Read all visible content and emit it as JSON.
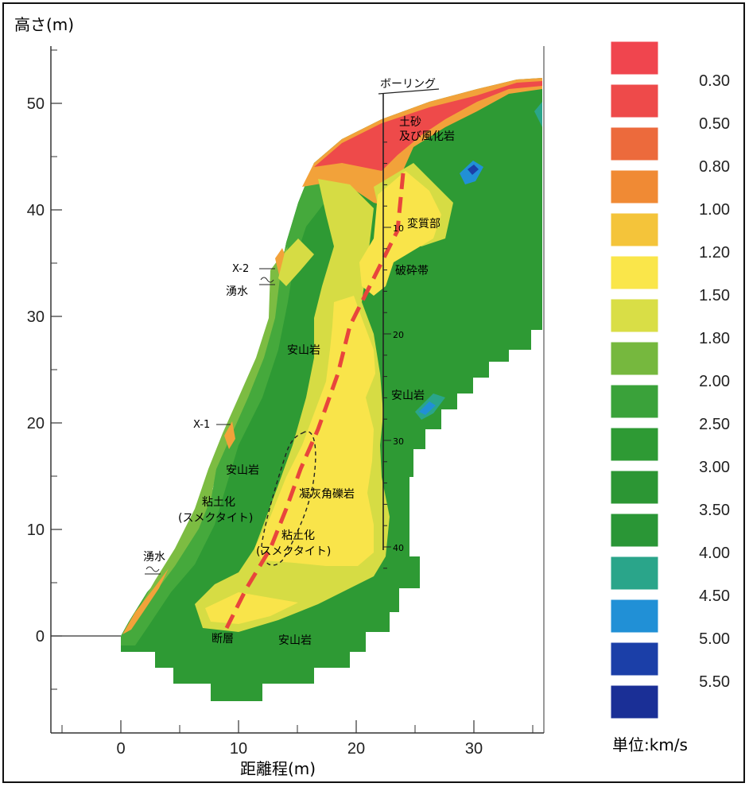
{
  "axes": {
    "y_title": "高さ(m)",
    "x_title": "距離程(m)",
    "x_ticks": [
      "0",
      "10",
      "20",
      "30"
    ],
    "y_ticks": [
      "0",
      "10",
      "20",
      "30",
      "40",
      "50"
    ]
  },
  "annotations": {
    "boring": "ボーリング",
    "soil": "土砂",
    "weathered": "及び風化岩",
    "altered": "変質部",
    "fractured": "破砕帯",
    "andesite_1": "安山岩",
    "andesite_2": "安山岩",
    "andesite_3": "安山岩",
    "andesite_4": "安山岩",
    "tuff_breccia": "凝灰角礫岩",
    "clay_1": "粘土化",
    "smectite_1": "(スメクタイト)",
    "clay_2": "粘土化",
    "smectite_2": "(スメクタイト)",
    "fault": "断層",
    "spring_1": "湧水",
    "spring_2": "湧水",
    "x2": "X-2",
    "x1": "X-1"
  },
  "boring_depth_ticks": [
    "10",
    "20",
    "30",
    "40"
  ],
  "legend": {
    "items": [
      {
        "label": "0.30",
        "color": "#f0454e"
      },
      {
        "label": "0.50",
        "color": "#ee4a4a"
      },
      {
        "label": "0.80",
        "color": "#ec6a3c"
      },
      {
        "label": "1.00",
        "color": "#f08a34"
      },
      {
        "label": "1.20",
        "color": "#f4c43a"
      },
      {
        "label": "1.50",
        "color": "#fae64a"
      },
      {
        "label": "1.80",
        "color": "#d9de46"
      },
      {
        "label": "2.00",
        "color": "#76b83e"
      },
      {
        "label": "2.50",
        "color": "#3aa23a"
      },
      {
        "label": "3.00",
        "color": "#2e9a34"
      },
      {
        "label": "3.50",
        "color": "#2c9634"
      },
      {
        "label": "4.00",
        "color": "#2a9636"
      },
      {
        "label": "4.50",
        "color": "#2aa58a"
      },
      {
        "label": "5.00",
        "color": "#2190d6"
      },
      {
        "label": "5.50",
        "color": "#1b3fa8"
      },
      {
        "label": "",
        "color": "#1a2f96"
      }
    ],
    "unit": "単位:km/s"
  },
  "colors": {
    "green_dark": "#2e9a34",
    "green_mid": "#45a93c",
    "green_light": "#7cbc42",
    "yellow_green": "#d6dc44",
    "yellow": "#f9e44a",
    "orange": "#f2a23a",
    "red": "#ee4a4a",
    "fault_line": "#e8453c"
  }
}
